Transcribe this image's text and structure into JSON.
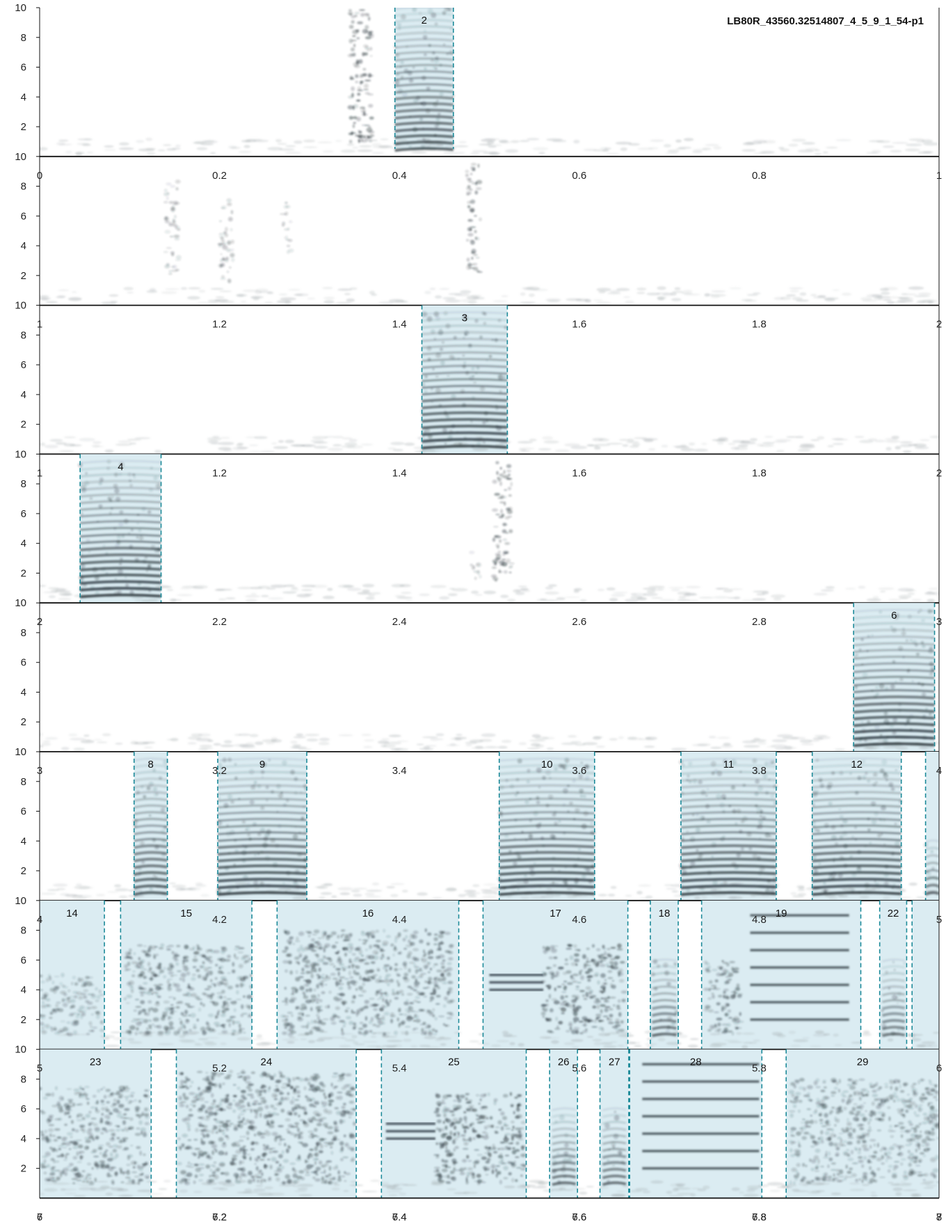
{
  "chart_data": {
    "type": "spectrogram",
    "title": "LB80R_43560.32514807_4_5_9_1_54-p1",
    "y_ticks": [
      "2",
      "4",
      "6",
      "8",
      "10"
    ],
    "ylim": [
      0,
      10
    ],
    "colors": {
      "segment_fill": "#dbecf2",
      "segment_border": "#1c8a99",
      "ink": "#1e2a30",
      "axis": "#111111"
    },
    "rows": [
      {
        "xlim": [
          0,
          1
        ],
        "x_ticks": [
          "0",
          "0.2",
          "0.4",
          "0.6",
          "0.8",
          "1"
        ],
        "segments": [
          {
            "label": "2",
            "start": 0.395,
            "end": 0.46,
            "band": [
              0.5,
              10
            ]
          }
        ],
        "energy": [
          {
            "start": 0.345,
            "end": 0.37,
            "fmin": 1,
            "fmax": 10,
            "level": 0.55,
            "kind": "noise"
          },
          {
            "start": 0.395,
            "end": 0.46,
            "fmin": 0.5,
            "fmax": 10,
            "level": 0.65,
            "kind": "harmonic"
          }
        ]
      },
      {
        "xlim": [
          1,
          2
        ],
        "x_ticks": [
          "1",
          "1.2",
          "1.4",
          "1.6",
          "1.8",
          "2"
        ],
        "segments": [],
        "energy": [
          {
            "start": 1.14,
            "end": 1.155,
            "fmin": 2,
            "fmax": 8.5,
            "level": 0.3,
            "kind": "noise"
          },
          {
            "start": 1.2,
            "end": 1.215,
            "fmin": 1.5,
            "fmax": 7.5,
            "level": 0.3,
            "kind": "noise"
          },
          {
            "start": 1.27,
            "end": 1.28,
            "fmin": 3,
            "fmax": 7,
            "level": 0.25,
            "kind": "noise"
          },
          {
            "start": 1.475,
            "end": 1.49,
            "fmin": 2,
            "fmax": 9.5,
            "level": 0.5,
            "kind": "noise"
          }
        ]
      },
      {
        "xlim": [
          1,
          2
        ],
        "x_ticks": [
          "1",
          "1.2",
          "1.4",
          "1.6",
          "1.8",
          "2"
        ],
        "segments": [
          {
            "label": "3",
            "start": 1.425,
            "end": 1.52,
            "band": [
              0,
              10
            ]
          }
        ],
        "energy": [
          {
            "start": 1.425,
            "end": 1.52,
            "fmin": 0.5,
            "fmax": 9.5,
            "level": 0.75,
            "kind": "harmonic"
          }
        ]
      },
      {
        "xlim": [
          2,
          3
        ],
        "x_ticks": [
          "2",
          "2.2",
          "2.4",
          "2.6",
          "2.8",
          "3"
        ],
        "segments": [
          {
            "label": "4",
            "start": 2.045,
            "end": 2.135,
            "band": [
              0,
              10
            ]
          }
        ],
        "energy": [
          {
            "start": 2.045,
            "end": 2.135,
            "fmin": 0.5,
            "fmax": 9.5,
            "level": 0.75,
            "kind": "harmonic"
          },
          {
            "start": 2.505,
            "end": 2.525,
            "fmin": 1.5,
            "fmax": 9.5,
            "level": 0.5,
            "kind": "noise"
          },
          {
            "start": 2.48,
            "end": 2.49,
            "fmin": 1.5,
            "fmax": 3.5,
            "level": 0.25,
            "kind": "noise"
          }
        ]
      },
      {
        "xlim": [
          3,
          4
        ],
        "x_ticks": [
          "3",
          "3.2",
          "3.4",
          "3.6",
          "3.8",
          "4"
        ],
        "segments": [
          {
            "label": "6",
            "start": 3.905,
            "end": 3.995,
            "band": [
              0,
              10
            ]
          }
        ],
        "energy": [
          {
            "start": 3.905,
            "end": 3.995,
            "fmin": 0.5,
            "fmax": 9.5,
            "level": 0.75,
            "kind": "harmonic"
          }
        ]
      },
      {
        "xlim": [
          4,
          5
        ],
        "x_ticks": [
          "4",
          "4.2",
          "4.4",
          "4.6",
          "4.8",
          "5"
        ],
        "segments": [
          {
            "label": "8",
            "start": 4.105,
            "end": 4.142,
            "band": [
              0,
              10
            ]
          },
          {
            "label": "9",
            "start": 4.198,
            "end": 4.297,
            "band": [
              0,
              10
            ]
          },
          {
            "label": "10",
            "start": 4.511,
            "end": 4.617,
            "band": [
              0,
              10
            ]
          },
          {
            "label": "11",
            "start": 4.713,
            "end": 4.819,
            "band": [
              0,
              10
            ]
          },
          {
            "label": "12",
            "start": 4.859,
            "end": 4.958,
            "band": [
              0,
              10
            ]
          },
          {
            "label": "",
            "start": 4.985,
            "end": 5.0,
            "band": [
              0,
              10
            ]
          }
        ],
        "energy": [
          {
            "start": 4.105,
            "end": 4.142,
            "fmin": 0.5,
            "fmax": 9.5,
            "level": 0.65,
            "kind": "harmonic"
          },
          {
            "start": 4.198,
            "end": 4.297,
            "fmin": 0.5,
            "fmax": 9.5,
            "level": 0.75,
            "kind": "harmonic"
          },
          {
            "start": 4.511,
            "end": 4.617,
            "fmin": 0.5,
            "fmax": 9.5,
            "level": 0.75,
            "kind": "harmonic"
          },
          {
            "start": 4.713,
            "end": 4.819,
            "fmin": 0.5,
            "fmax": 9.5,
            "level": 0.75,
            "kind": "harmonic"
          },
          {
            "start": 4.859,
            "end": 4.958,
            "fmin": 0.5,
            "fmax": 9.5,
            "level": 0.75,
            "kind": "harmonic"
          },
          {
            "start": 4.985,
            "end": 5.0,
            "fmin": 0.5,
            "fmax": 4,
            "level": 0.55,
            "kind": "harmonic"
          }
        ]
      },
      {
        "xlim": [
          5,
          6
        ],
        "x_ticks": [
          "5",
          "5.2",
          "5.4",
          "5.6",
          "5.8",
          "6"
        ],
        "segments": [
          {
            "label": "14",
            "start": 5.0,
            "end": 5.072,
            "band": [
              0,
              10
            ]
          },
          {
            "label": "15",
            "start": 5.09,
            "end": 5.236,
            "band": [
              0,
              10
            ]
          },
          {
            "label": "16",
            "start": 5.264,
            "end": 5.466,
            "band": [
              0,
              10
            ]
          },
          {
            "label": "17",
            "start": 5.493,
            "end": 5.654,
            "band": [
              0,
              10
            ]
          },
          {
            "label": "18",
            "start": 5.679,
            "end": 5.71,
            "band": [
              0,
              10
            ]
          },
          {
            "label": "19",
            "start": 5.736,
            "end": 5.913,
            "band": [
              0,
              10
            ]
          },
          {
            "label": "22",
            "start": 5.934,
            "end": 5.964,
            "band": [
              0,
              10
            ]
          },
          {
            "label": "",
            "start": 5.97,
            "end": 6.0,
            "band": [
              0,
              10
            ]
          }
        ],
        "energy": [
          {
            "start": 5.0,
            "end": 5.07,
            "fmin": 1,
            "fmax": 5,
            "level": 0.35,
            "kind": "noise"
          },
          {
            "start": 5.095,
            "end": 5.235,
            "fmin": 1,
            "fmax": 7,
            "level": 0.45,
            "kind": "noise"
          },
          {
            "start": 5.27,
            "end": 5.46,
            "fmin": 1,
            "fmax": 8,
            "level": 0.45,
            "kind": "noise"
          },
          {
            "start": 5.5,
            "end": 5.56,
            "fmin": 4,
            "fmax": 5,
            "level": 0.85,
            "kind": "tonal"
          },
          {
            "start": 5.56,
            "end": 5.65,
            "fmin": 1,
            "fmax": 7,
            "level": 0.55,
            "kind": "noise"
          },
          {
            "start": 5.681,
            "end": 5.708,
            "fmin": 1,
            "fmax": 6,
            "level": 0.55,
            "kind": "harmonic"
          },
          {
            "start": 5.74,
            "end": 5.78,
            "fmin": 1,
            "fmax": 6,
            "level": 0.5,
            "kind": "noise"
          },
          {
            "start": 5.79,
            "end": 5.9,
            "fmin": 2,
            "fmax": 9,
            "level": 0.8,
            "kind": "tonal"
          },
          {
            "start": 5.937,
            "end": 5.962,
            "fmin": 1,
            "fmax": 6,
            "level": 0.5,
            "kind": "harmonic"
          }
        ]
      },
      {
        "xlim": [
          6,
          7
        ],
        "x_ticks": [
          "6",
          "6.2",
          "6.4",
          "6.6",
          "6.8",
          "7"
        ],
        "segments": [
          {
            "label": "23",
            "start": 6.0,
            "end": 6.124,
            "band": [
              0,
              10
            ]
          },
          {
            "label": "24",
            "start": 6.152,
            "end": 6.352,
            "band": [
              0,
              10
            ]
          },
          {
            "label": "25",
            "start": 6.38,
            "end": 6.541,
            "band": [
              0,
              10
            ]
          },
          {
            "label": "26",
            "start": 6.567,
            "end": 6.598,
            "band": [
              0,
              10
            ]
          },
          {
            "label": "27",
            "start": 6.623,
            "end": 6.655,
            "band": [
              0,
              10
            ]
          },
          {
            "label": "28",
            "start": 6.656,
            "end": 6.803,
            "band": [
              0,
              10
            ]
          },
          {
            "label": "29",
            "start": 6.83,
            "end": 7.0,
            "band": [
              0,
              10
            ]
          }
        ],
        "energy": [
          {
            "start": 6.0,
            "end": 6.12,
            "fmin": 1,
            "fmax": 7.5,
            "level": 0.45,
            "kind": "noise"
          },
          {
            "start": 6.155,
            "end": 6.35,
            "fmin": 1,
            "fmax": 8.5,
            "level": 0.5,
            "kind": "noise"
          },
          {
            "start": 6.385,
            "end": 6.44,
            "fmin": 4,
            "fmax": 5,
            "level": 0.85,
            "kind": "tonal"
          },
          {
            "start": 6.44,
            "end": 6.54,
            "fmin": 1,
            "fmax": 7,
            "level": 0.55,
            "kind": "noise"
          },
          {
            "start": 6.57,
            "end": 6.596,
            "fmin": 1,
            "fmax": 6,
            "level": 0.55,
            "kind": "harmonic"
          },
          {
            "start": 6.626,
            "end": 6.652,
            "fmin": 1,
            "fmax": 6,
            "level": 0.55,
            "kind": "harmonic"
          },
          {
            "start": 6.67,
            "end": 6.8,
            "fmin": 2,
            "fmax": 9,
            "level": 0.8,
            "kind": "tonal"
          },
          {
            "start": 6.835,
            "end": 7.0,
            "fmin": 1,
            "fmax": 8,
            "level": 0.4,
            "kind": "noise"
          }
        ]
      }
    ],
    "bottom_axis": {
      "xlim": [
        7,
        8
      ],
      "x_ticks": [
        "7",
        "7.2",
        "7.4",
        "7.6",
        "7.8",
        "8"
      ]
    }
  }
}
